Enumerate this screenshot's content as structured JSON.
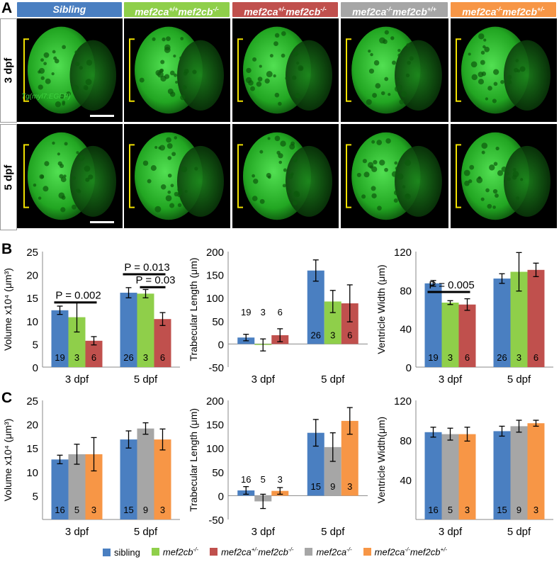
{
  "panel_letters": [
    "A",
    "B",
    "C"
  ],
  "headers": [
    {
      "label_html": "Sibling",
      "color": "#4a7fc1"
    },
    {
      "label_html": "mef2ca<sup>+/+</sup>mef2cb<sup>-/-</sup>",
      "color": "#8fcf4a"
    },
    {
      "label_html": "mef2ca<sup>+/-</sup>mef2cb<sup>-/-</sup>",
      "color": "#c0504d"
    },
    {
      "label_html": "mef2ca<sup>-/-</sup>mef2cb<sup>+/+</sup>",
      "color": "#a6a6a6"
    },
    {
      "label_html": "mef2ca<sup>-/-</sup>mef2cb<sup>+/-</sup>",
      "color": "#f79646"
    }
  ],
  "row_labels": [
    "3 dpf",
    "5 dpf"
  ],
  "transgene_label": "Tg(myl7:EGFP)",
  "colors": {
    "sibling": "#4a7fc1",
    "mef2cb": "#8fcf4a",
    "het": "#c0504d",
    "mef2ca": "#a6a6a6",
    "mef2ca_het": "#f79646",
    "bracket": "#f0e000",
    "gfp": "#2ecc2e"
  },
  "legend": [
    {
      "label_html": "sibling",
      "color": "#4a7fc1",
      "italic": false
    },
    {
      "label_html": "mef2cb<sup>-/-</sup>",
      "color": "#8fcf4a",
      "italic": true
    },
    {
      "label_html": "mef2ca<sup>+/-</sup>mef2cb<sup>-/-</sup>",
      "color": "#c0504d",
      "italic": true
    },
    {
      "label_html": "mef2ca<sup>-/-</sup>",
      "color": "#a6a6a6",
      "italic": true
    },
    {
      "label_html": "mef2ca<sup>-/-</sup>mef2cb<sup>+/-</sup>",
      "color": "#f79646",
      "italic": true
    }
  ],
  "chart_data": [
    {
      "id": "B-volume",
      "type": "bar",
      "ylabel": "Volume x10⁴ (μm³)",
      "ylim": [
        0,
        25
      ],
      "yticks": [
        0,
        5,
        10,
        15,
        20,
        25
      ],
      "categories": [
        "3 dpf",
        "5 dpf"
      ],
      "series": [
        {
          "color": "#4a7fc1",
          "values": [
            12.3,
            16.1
          ],
          "errors": [
            0.9,
            1.1
          ],
          "n": [
            "19",
            "26"
          ]
        },
        {
          "color": "#8fcf4a",
          "values": [
            10.8,
            15.9
          ],
          "errors": [
            3.2,
            0.9
          ],
          "n": [
            "3",
            "3"
          ]
        },
        {
          "color": "#c0504d",
          "values": [
            5.7,
            10.4
          ],
          "errors": [
            0.9,
            1.4
          ],
          "n": [
            "6",
            "6"
          ]
        }
      ],
      "annotations": [
        {
          "text": "P = 0.002",
          "cat": 0,
          "from": 0,
          "to": 2,
          "y": 14.0
        },
        {
          "text": "P = 0.013",
          "cat": 1,
          "from": 0,
          "to": 2,
          "y": 20.1
        },
        {
          "text": "P = 0.03",
          "cat": 1,
          "from": 1,
          "to": 2,
          "y": 17.3
        }
      ]
    },
    {
      "id": "B-trabecular",
      "type": "bar",
      "ylabel": "Trabecular Length (μm)",
      "ylim": [
        -50,
        200
      ],
      "yticks": [
        -50,
        0,
        50,
        100,
        150,
        200
      ],
      "categories": [
        "3 dpf",
        "5 dpf"
      ],
      "series": [
        {
          "color": "#4a7fc1",
          "values": [
            14,
            159
          ],
          "errors": [
            7,
            23
          ],
          "n": [
            "19",
            "26"
          ]
        },
        {
          "color": "#8fcf4a",
          "values": [
            -2,
            92
          ],
          "errors": [
            13,
            24
          ],
          "n": [
            "3",
            "3"
          ]
        },
        {
          "color": "#c0504d",
          "values": [
            19,
            88
          ],
          "errors": [
            14,
            40
          ],
          "n": [
            "6",
            "6"
          ]
        }
      ],
      "n_label_y": [
        70,
        20
      ],
      "annotations": []
    },
    {
      "id": "B-ventricle",
      "type": "bar",
      "ylabel": "Ventricle Width (μm)",
      "ylim": [
        0,
        120
      ],
      "yticks": [
        0,
        40,
        80,
        120
      ],
      "categories": [
        "3 dpf",
        "5 dpf"
      ],
      "series": [
        {
          "color": "#4a7fc1",
          "values": [
            87,
            92
          ],
          "errors": [
            3,
            5
          ],
          "n": [
            "19",
            "26"
          ]
        },
        {
          "color": "#8fcf4a",
          "values": [
            67,
            99
          ],
          "errors": [
            2,
            20
          ],
          "n": [
            "3",
            "3"
          ]
        },
        {
          "color": "#c0504d",
          "values": [
            65,
            101
          ],
          "errors": [
            6,
            7
          ],
          "n": [
            "6",
            "6"
          ]
        }
      ],
      "annotations": [
        {
          "text": "P = 0.005",
          "cat": 0,
          "from": 0,
          "to": 2,
          "y": 78
        }
      ]
    },
    {
      "id": "C-volume",
      "type": "bar",
      "ylabel": "Volume x10⁴ (μm³)",
      "ylim": [
        0,
        25
      ],
      "yticks": [
        5,
        10,
        15,
        20,
        25
      ],
      "categories": [
        "3 dpf",
        "5 dpf"
      ],
      "series": [
        {
          "color": "#4a7fc1",
          "values": [
            12.6,
            16.8
          ],
          "errors": [
            0.9,
            1.8
          ],
          "n": [
            "16",
            "15"
          ]
        },
        {
          "color": "#a6a6a6",
          "values": [
            13.7,
            19.1
          ],
          "errors": [
            2.1,
            1.2
          ],
          "n": [
            "5",
            "9"
          ]
        },
        {
          "color": "#f79646",
          "values": [
            13.7,
            16.8
          ],
          "errors": [
            3.5,
            2.2
          ],
          "n": [
            "3",
            "3"
          ]
        }
      ],
      "annotations": []
    },
    {
      "id": "C-trabecular",
      "type": "bar",
      "ylabel": "Trabecular Length (μm)",
      "ylim": [
        -50,
        200
      ],
      "yticks": [
        -50,
        0,
        50,
        100,
        150,
        200
      ],
      "categories": [
        "3 dpf",
        "5 dpf"
      ],
      "series": [
        {
          "color": "#4a7fc1",
          "values": [
            11,
            132
          ],
          "errors": [
            8,
            28
          ],
          "n": [
            "16",
            "15"
          ]
        },
        {
          "color": "#a6a6a6",
          "values": [
            -12,
            102
          ],
          "errors": [
            15,
            30
          ],
          "n": [
            "5",
            "9"
          ]
        },
        {
          "color": "#f79646",
          "values": [
            10,
            157
          ],
          "errors": [
            7,
            28
          ],
          "n": [
            "3",
            "3"
          ]
        }
      ],
      "n_label_y": [
        35,
        20
      ],
      "annotations": []
    },
    {
      "id": "C-ventricle",
      "type": "bar",
      "ylabel": "Ventricle Width(μm)",
      "ylim": [
        0,
        120
      ],
      "yticks": [
        40,
        80,
        120
      ],
      "categories": [
        "3 dpf",
        "5 dpf"
      ],
      "series": [
        {
          "color": "#4a7fc1",
          "values": [
            88,
            89
          ],
          "errors": [
            5,
            5
          ],
          "n": [
            "16",
            "15"
          ]
        },
        {
          "color": "#a6a6a6",
          "values": [
            86,
            94
          ],
          "errors": [
            6,
            6
          ],
          "n": [
            "5",
            "9"
          ]
        },
        {
          "color": "#f79646",
          "values": [
            86,
            97
          ],
          "errors": [
            7,
            3
          ],
          "n": [
            "3",
            "3"
          ]
        }
      ],
      "annotations": []
    }
  ]
}
